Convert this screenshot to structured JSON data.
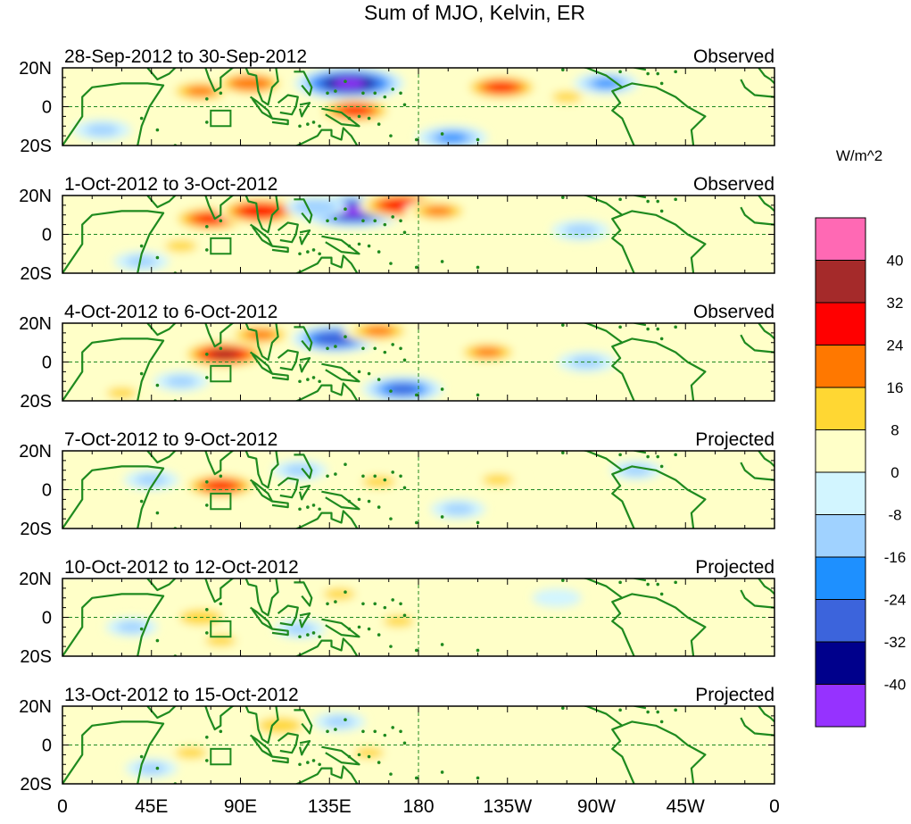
{
  "chart_data": {
    "type": "heatmap",
    "title": "Sum of MJO, Kelvin, ER",
    "units": "W/m^2",
    "lat_range": [
      -20,
      20
    ],
    "lon_range": [
      0,
      360
    ],
    "lat_tick_labels": [
      "20N",
      "0",
      "20S"
    ],
    "lon_tick_labels": [
      "0",
      "45E",
      "90E",
      "135E",
      "180",
      "135W",
      "90W",
      "45W",
      "0"
    ],
    "colorbar": {
      "levels": [
        40,
        32,
        24,
        16,
        8,
        0,
        -8,
        -16,
        -24,
        -32,
        -40
      ],
      "level_labels": [
        "40",
        "32",
        "24",
        "16",
        "8",
        "0",
        "-8",
        "-16",
        "-24",
        "-32",
        "-40"
      ],
      "colors": [
        "#ff69b4",
        "#a52a2a",
        "#ff0000",
        "#ff7800",
        "#ffd733",
        "#ffffc8",
        "#d2f5ff",
        "#a0d2ff",
        "#1e90ff",
        "#3c64dc",
        "#00008c",
        "#9632ff"
      ]
    },
    "panels": [
      {
        "date_range": "28-Sep-2012 to 30-Sep-2012",
        "kind": "Observed",
        "features": [
          {
            "lon": 70,
            "lat": 8,
            "value": 20
          },
          {
            "lon": 95,
            "lat": 12,
            "value": 22
          },
          {
            "lon": 145,
            "lat": 12,
            "value": -44
          },
          {
            "lon": 148,
            "lat": -2,
            "value": 26
          },
          {
            "lon": 222,
            "lat": 10,
            "value": 26
          },
          {
            "lon": 197,
            "lat": -16,
            "value": -20
          },
          {
            "lon": 255,
            "lat": 5,
            "value": 8
          },
          {
            "lon": 275,
            "lat": 12,
            "value": -16
          },
          {
            "lon": 20,
            "lat": -12,
            "value": -12
          }
        ]
      },
      {
        "date_range": "1-Oct-2012 to 3-Oct-2012",
        "kind": "Observed",
        "features": [
          {
            "lon": 75,
            "lat": 8,
            "value": 28
          },
          {
            "lon": 100,
            "lat": 12,
            "value": 30
          },
          {
            "lon": 147,
            "lat": 12,
            "value": -44
          },
          {
            "lon": 172,
            "lat": 15,
            "value": 30
          },
          {
            "lon": 128,
            "lat": 14,
            "value": -14
          },
          {
            "lon": 190,
            "lat": 12,
            "value": 18
          },
          {
            "lon": 60,
            "lat": -6,
            "value": 10
          },
          {
            "lon": 40,
            "lat": -14,
            "value": -10
          },
          {
            "lon": 262,
            "lat": 2,
            "value": -12
          }
        ]
      },
      {
        "date_range": "4-Oct-2012 to 6-Oct-2012",
        "kind": "Observed",
        "features": [
          {
            "lon": 82,
            "lat": 4,
            "value": 32
          },
          {
            "lon": 100,
            "lat": 14,
            "value": 20
          },
          {
            "lon": 138,
            "lat": 12,
            "value": -30
          },
          {
            "lon": 160,
            "lat": 16,
            "value": 20
          },
          {
            "lon": 215,
            "lat": 5,
            "value": 18
          },
          {
            "lon": 172,
            "lat": -14,
            "value": -26
          },
          {
            "lon": 60,
            "lat": -10,
            "value": -10
          },
          {
            "lon": 30,
            "lat": -16,
            "value": 8
          },
          {
            "lon": 265,
            "lat": 0,
            "value": -12
          }
        ]
      },
      {
        "date_range": "7-Oct-2012 to 9-Oct-2012",
        "kind": "Projected",
        "features": [
          {
            "lon": 80,
            "lat": 2,
            "value": 26
          },
          {
            "lon": 160,
            "lat": 4,
            "value": 12
          },
          {
            "lon": 45,
            "lat": 5,
            "value": -10
          },
          {
            "lon": 120,
            "lat": 10,
            "value": -10
          },
          {
            "lon": 220,
            "lat": 5,
            "value": 9
          },
          {
            "lon": 200,
            "lat": -10,
            "value": -10
          },
          {
            "lon": 290,
            "lat": 10,
            "value": -8
          }
        ]
      },
      {
        "date_range": "10-Oct-2012 to 12-Oct-2012",
        "kind": "Projected",
        "features": [
          {
            "lon": 70,
            "lat": 0,
            "value": 13
          },
          {
            "lon": 140,
            "lat": 12,
            "value": 10
          },
          {
            "lon": 80,
            "lat": -12,
            "value": 9
          },
          {
            "lon": 170,
            "lat": -2,
            "value": 9
          },
          {
            "lon": 120,
            "lat": -6,
            "value": -8
          },
          {
            "lon": 35,
            "lat": -5,
            "value": -8
          },
          {
            "lon": 250,
            "lat": 10,
            "value": -6
          }
        ]
      },
      {
        "date_range": "13-Oct-2012 to 15-Oct-2012",
        "kind": "Projected",
        "features": [
          {
            "lon": 110,
            "lat": 10,
            "value": 14
          },
          {
            "lon": 65,
            "lat": -4,
            "value": 10
          },
          {
            "lon": 155,
            "lat": -4,
            "value": 8
          },
          {
            "lon": 140,
            "lat": 12,
            "value": -8
          },
          {
            "lon": 45,
            "lat": -12,
            "value": -8
          },
          {
            "lon": 230,
            "lat": 6,
            "value": 6
          }
        ]
      }
    ],
    "box_region": {
      "lon": [
        75,
        85
      ],
      "lat": [
        -10,
        -2
      ]
    }
  }
}
